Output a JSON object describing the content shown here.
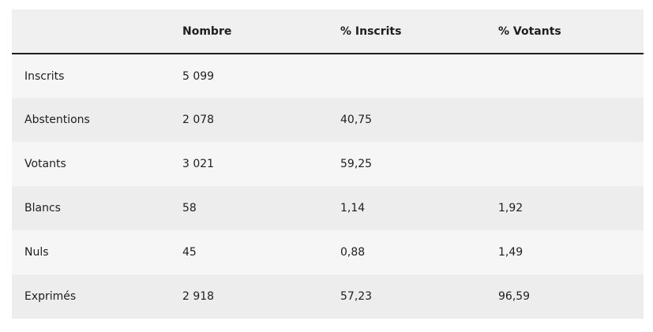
{
  "table": {
    "header": [
      "Nombre",
      "% Inscrits",
      "% Votants"
    ],
    "rows": [
      [
        "Inscrits",
        "5 099"
      ],
      [
        "Abstentions",
        "2 078",
        "40,75"
      ],
      [
        "Votants",
        "3 021",
        "59,25"
      ],
      [
        "Blancs",
        "58",
        "1,14",
        "1,92"
      ],
      [
        "Nuls",
        "45",
        "0,88",
        "1,49"
      ],
      [
        "Exprimés",
        "2 918",
        "57,23",
        "96,59"
      ]
    ]
  }
}
